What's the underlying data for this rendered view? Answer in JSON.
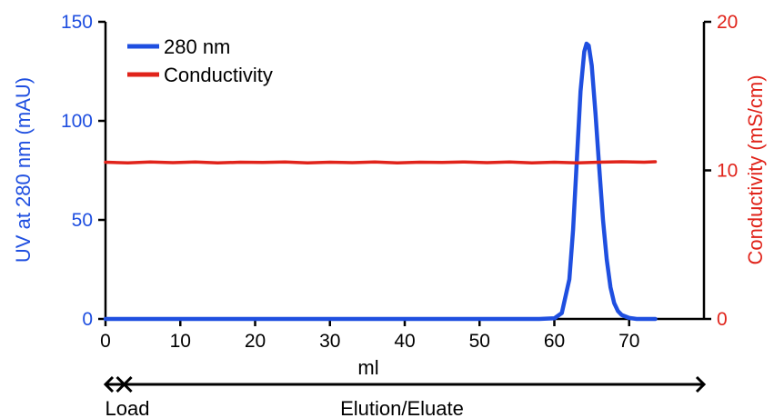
{
  "chart_data": {
    "type": "line",
    "xlabel": "ml",
    "x_ticks": [
      0,
      10,
      20,
      30,
      40,
      50,
      60,
      70
    ],
    "xlim": [
      0,
      80
    ],
    "y_left": {
      "label": "UV at 280 nm (mAU)",
      "ticks": [
        0,
        50,
        100,
        150
      ],
      "ylim": [
        0,
        150
      ],
      "color": "#1f4fe0"
    },
    "y_right": {
      "label": "Conductivity (mS/cm)",
      "ticks": [
        0,
        10,
        20
      ],
      "ylim": [
        0,
        20
      ],
      "color": "#e0231a"
    },
    "legend": {
      "position": "top-left"
    },
    "series": [
      {
        "name": "280 nm",
        "axis": "left",
        "color": "#1f4fe0",
        "x": [
          0,
          10,
          20,
          30,
          40,
          50,
          58,
          60,
          61,
          62,
          62.5,
          63,
          63.5,
          64,
          64.3,
          64.6,
          65,
          65.5,
          66,
          66.5,
          67,
          67.5,
          68,
          68.5,
          69,
          70,
          71,
          73.5
        ],
        "y": [
          0,
          0,
          0,
          0,
          0,
          0,
          0,
          0.3,
          3,
          20,
          45,
          80,
          115,
          135,
          139,
          138,
          128,
          104,
          76,
          50,
          30,
          16,
          8,
          4,
          2,
          0.5,
          0,
          0
        ]
      },
      {
        "name": "Conductivity",
        "axis": "right",
        "color": "#e0231a",
        "x": [
          0,
          3,
          6,
          9,
          12,
          15,
          18,
          21,
          24,
          27,
          30,
          33,
          36,
          39,
          42,
          45,
          48,
          51,
          54,
          57,
          60,
          63,
          66,
          69,
          72,
          73.5
        ],
        "y": [
          10.55,
          10.5,
          10.57,
          10.52,
          10.56,
          10.5,
          10.55,
          10.53,
          10.57,
          10.51,
          10.55,
          10.52,
          10.56,
          10.5,
          10.55,
          10.53,
          10.57,
          10.52,
          10.56,
          10.5,
          10.55,
          10.5,
          10.55,
          10.58,
          10.55,
          10.58
        ]
      }
    ],
    "phases": [
      {
        "label": "Load",
        "from": 0,
        "to": 2.5
      },
      {
        "label": "Elution/Eluate",
        "from": 2.5,
        "to": 80
      }
    ]
  }
}
